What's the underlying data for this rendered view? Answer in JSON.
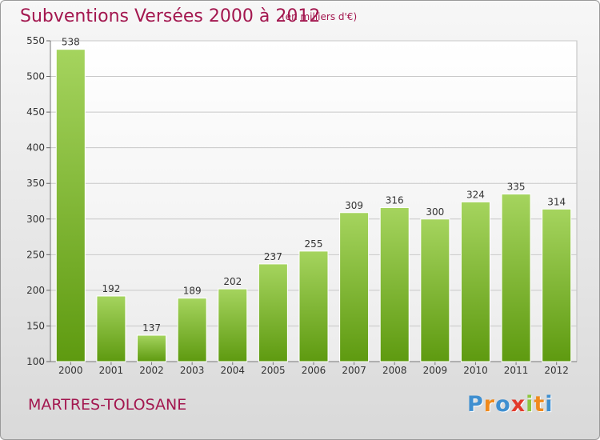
{
  "header": {
    "title": "Subventions Versées 2000 à 2012",
    "subtitle": "(en milliers d'€)"
  },
  "footer": {
    "commune": "MARTRES-TOLOSANE",
    "logo_text": "Proxiti",
    "logo_colors": [
      "#3f8fd0",
      "#f08a1c",
      "#3f8fd0",
      "#e23a2b",
      "#8cc63e",
      "#f08a1c",
      "#3f8fd0"
    ]
  },
  "colors": {
    "bar_top": "#a5d45e",
    "bar_bottom": "#5e9a10",
    "accent": "#a3174f",
    "grid": "#c8c8c8"
  },
  "chart_data": {
    "type": "bar",
    "categories": [
      "2000",
      "2001",
      "2002",
      "2003",
      "2004",
      "2005",
      "2006",
      "2007",
      "2008",
      "2009",
      "2010",
      "2011",
      "2012"
    ],
    "values": [
      538,
      192,
      137,
      189,
      202,
      237,
      255,
      309,
      316,
      300,
      324,
      335,
      314
    ],
    "title": "Subventions Versées 2000 à 2012",
    "subtitle": "(en milliers d'€)",
    "xlabel": "",
    "ylabel": "",
    "ylim": [
      100,
      550
    ],
    "yticks": [
      100,
      150,
      200,
      250,
      300,
      350,
      400,
      450,
      500,
      550
    ],
    "grid": true,
    "data_labels": true
  }
}
